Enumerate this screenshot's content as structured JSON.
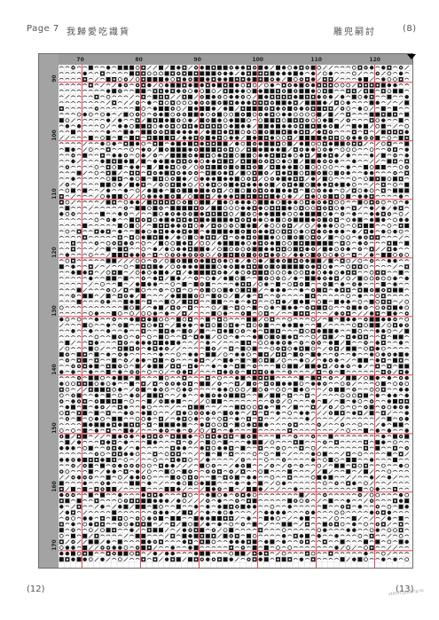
{
  "header": {
    "page_label": "Page 7",
    "title": "我歸愛吃識貨",
    "right_text": "雕兜嗣討",
    "page_number": "(8)"
  },
  "footer": {
    "left": "(12)",
    "right": "(13)",
    "watermark": "stitch-gallery.ru"
  },
  "chart": {
    "column_labels": [
      "70",
      "80",
      "90",
      "100",
      "110",
      "120"
    ],
    "row_labels": [
      "90",
      "100",
      "110",
      "120",
      "130",
      "140",
      "150",
      "160",
      "170"
    ],
    "gridline_color": "#e0313e",
    "background_color": "#d8d8d8"
  }
}
